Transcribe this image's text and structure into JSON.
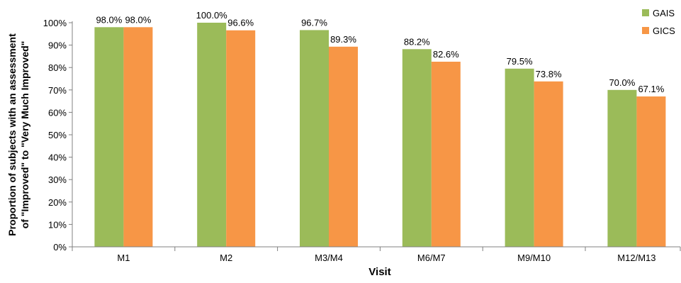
{
  "chart_data": {
    "type": "bar",
    "title": "",
    "xlabel": "Visit",
    "ylabel_lines": [
      "Proportion of subjects with an assessment",
      "of \"Improved\" to \"Very Much Improved\""
    ],
    "categories": [
      "M1",
      "M2",
      "M3/M4",
      "M6/M7",
      "M9/M10",
      "M12/M13"
    ],
    "series": [
      {
        "name": "GAIS",
        "color": "#9BBB59",
        "values": [
          98.0,
          100.0,
          96.7,
          88.2,
          79.5,
          70.0
        ],
        "labels": [
          "98.0%",
          "100.0%",
          "96.7%",
          "88.2%",
          "79.5%",
          "70.0%"
        ]
      },
      {
        "name": "GICS",
        "color": "#F79646",
        "values": [
          98.0,
          96.6,
          89.3,
          82.6,
          73.8,
          67.1
        ],
        "labels": [
          "98.0%",
          "96.6%",
          "89.3%",
          "82.6%",
          "73.8%",
          "67.1%"
        ]
      }
    ],
    "ylim": [
      0,
      100
    ],
    "yticks": [
      0,
      10,
      20,
      30,
      40,
      50,
      60,
      70,
      80,
      90,
      100
    ],
    "ytick_labels": [
      "0%",
      "10%",
      "20%",
      "30%",
      "40%",
      "50%",
      "60%",
      "70%",
      "80%",
      "90%",
      "100%"
    ],
    "grid": false,
    "legend_position": "top-right"
  }
}
